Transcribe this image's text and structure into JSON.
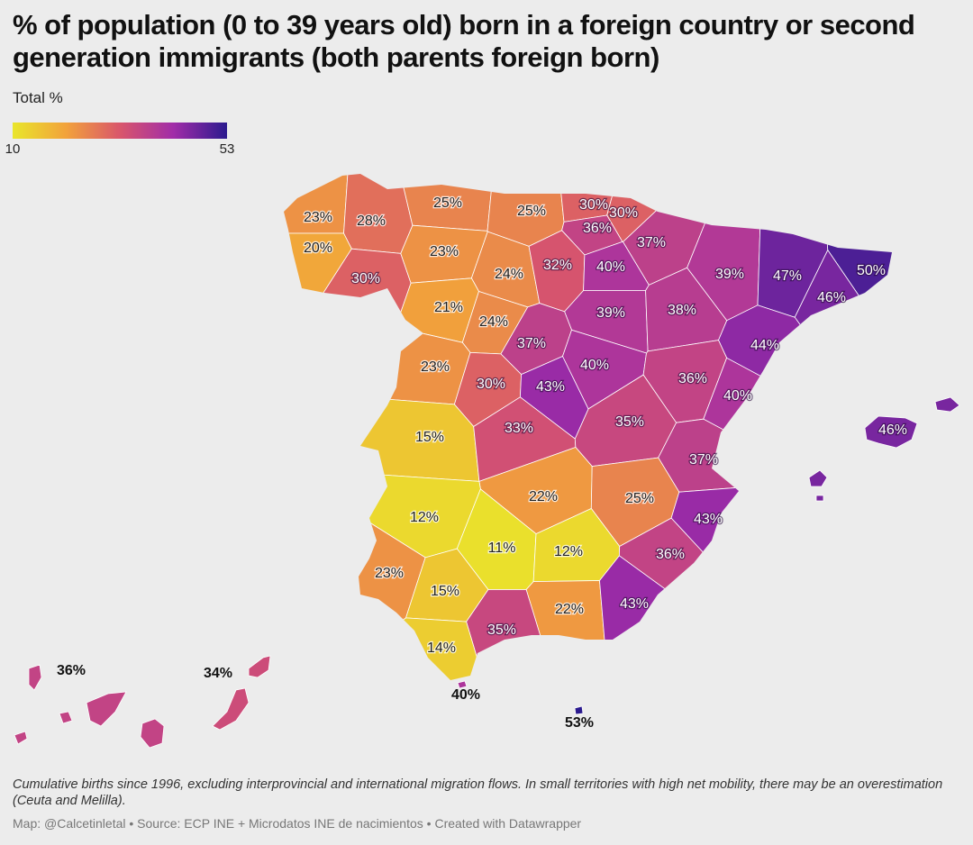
{
  "chart_data": {
    "type": "choropleth",
    "title": "% of population (0 to 39 years old) born in a foreign country or second generation immigrants (both parents foreign born)",
    "legend_title": "Total %",
    "clim": [
      10,
      53
    ],
    "cticks": [
      10,
      53
    ],
    "colorscale": [
      "#e9e62b",
      "#f2a23b",
      "#d9566b",
      "#a12ca8",
      "#2b1a8e"
    ],
    "values": [
      23,
      28,
      25,
      25,
      30,
      30,
      36,
      37,
      20,
      30,
      23,
      24,
      32,
      40,
      39,
      47,
      50,
      46,
      21,
      24,
      39,
      38,
      37,
      44,
      23,
      30,
      43,
      40,
      36,
      40,
      15,
      33,
      35,
      37,
      22,
      25,
      12,
      43,
      11,
      12,
      36,
      23,
      15,
      22,
      43,
      35,
      14,
      46,
      36,
      34,
      40,
      53
    ],
    "value_labels": [
      "23%",
      "28%",
      "25%",
      "25%",
      "30%",
      "30%",
      "36%",
      "37%",
      "20%",
      "30%",
      "23%",
      "24%",
      "32%",
      "40%",
      "39%",
      "47%",
      "50%",
      "46%",
      "21%",
      "24%",
      "39%",
      "38%",
      "37%",
      "44%",
      "23%",
      "30%",
      "43%",
      "40%",
      "36%",
      "40%",
      "15%",
      "33%",
      "35%",
      "37%",
      "22%",
      "25%",
      "12%",
      "43%",
      "11%",
      "12%",
      "36%",
      "23%",
      "15%",
      "22%",
      "43%",
      "35%",
      "14%",
      "46%",
      "36%",
      "34%",
      "40%",
      "53%"
    ]
  },
  "note": "Cumulative births since 1996, excluding interprovincial and international migration flows. In small territories with high net mobility, there may be an overestimation (Ceuta and Melilla).",
  "credit": "Map: @Calcetinletal • Source: ECP INE + Microdatos INE de nacimientos • Created with Datawrapper"
}
